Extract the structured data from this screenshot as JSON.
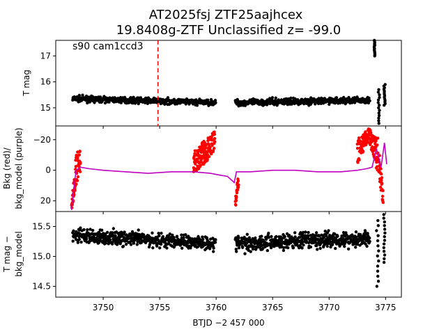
{
  "figure": {
    "title_line1": "AT2025fsj  ZTF25aajhcex",
    "title_line2": "19.8408g-ZTF Unclassified z= -99.0",
    "xlabel": "BTJD −2 457 000",
    "x_ticks": [
      "3750",
      "3755",
      "3760",
      "3765",
      "3770",
      "3775"
    ]
  },
  "colors": {
    "raw": "#000000",
    "bkg": "#ff0000",
    "bkg_model": "#bf00bf",
    "marker_line": "#ff0000"
  },
  "chart_data": [
    {
      "panel": "top",
      "type": "scatter",
      "ylabel": "T mag",
      "annotation": "s90 cam1ccd3",
      "xlim": [
        3745.8,
        3776.4
      ],
      "ylim": [
        17.6,
        14.3
      ],
      "inverted_y": true,
      "y_ticks": [
        "15",
        "16",
        "17"
      ],
      "vline_x": 3754.85,
      "series": [
        {
          "segments": [
            {
              "x_start": 3747.3,
              "x_end": 3759.95,
              "y_start": 15.35,
              "y_end": 15.2,
              "scatter": 0.07
            },
            {
              "x_start": 3761.7,
              "x_end": 3773.6,
              "y_start": 15.2,
              "y_end": 15.3,
              "scatter": 0.08
            }
          ]
        }
      ],
      "features": [
        {
          "x": 3774.0,
          "y_min": 17.0,
          "y_max": 17.6
        },
        {
          "x": 3774.4,
          "y_min": 14.4,
          "y_max": 15.7
        },
        {
          "x": 3774.9,
          "y_min": 15.1,
          "y_max": 15.9
        }
      ]
    },
    {
      "panel": "middle",
      "type": "scatter+line",
      "ylabel_line1": "Bkg (red)/",
      "ylabel_line2": "bkg_model (purple)",
      "xlim": [
        3745.8,
        3776.4
      ],
      "ylim": [
        -29,
        27
      ],
      "y_ticks": [
        "20",
        "0",
        "−20"
      ],
      "bkg_envelope": [
        {
          "x": 3747.2,
          "center": 24,
          "spread": 2
        },
        {
          "x": 3747.6,
          "center": 0,
          "spread": 10
        },
        {
          "x": 3748.0,
          "center": -8,
          "spread": 9
        },
        {
          "x": 3750.0,
          "center": -3,
          "spread": 7
        },
        {
          "x": 3753.0,
          "center": -1,
          "spread": 7
        },
        {
          "x": 3756.0,
          "center": -1,
          "spread": 7
        },
        {
          "x": 3758.0,
          "center": -5,
          "spread": 7
        },
        {
          "x": 3759.0,
          "center": -12,
          "spread": 8
        },
        {
          "x": 3759.9,
          "center": -20,
          "spread": 6
        },
        {
          "x": 3761.7,
          "center": 22,
          "spread": 3
        },
        {
          "x": 3762.0,
          "center": 3,
          "spread": 7
        },
        {
          "x": 3764.0,
          "center": 2,
          "spread": 8
        },
        {
          "x": 3768.0,
          "center": 2,
          "spread": 8
        },
        {
          "x": 3771.0,
          "center": 0,
          "spread": 8
        },
        {
          "x": 3772.5,
          "center": -12,
          "spread": 8
        },
        {
          "x": 3773.5,
          "center": -24,
          "spread": 4
        },
        {
          "x": 3774.3,
          "center": -10,
          "spread": 12
        },
        {
          "x": 3774.8,
          "center": 18,
          "spread": 5
        }
      ],
      "bkg_model_line": [
        {
          "x": 3747.2,
          "y": 26
        },
        {
          "x": 3747.4,
          "y": 12
        },
        {
          "x": 3747.6,
          "y": 0
        },
        {
          "x": 3748.0,
          "y": -2
        },
        {
          "x": 3748.8,
          "y": -1
        },
        {
          "x": 3750.0,
          "y": 0
        },
        {
          "x": 3752.0,
          "y": 1
        },
        {
          "x": 3754.0,
          "y": 2
        },
        {
          "x": 3756.0,
          "y": 1
        },
        {
          "x": 3758.0,
          "y": 1
        },
        {
          "x": 3759.5,
          "y": 2
        },
        {
          "x": 3760.2,
          "y": 3
        },
        {
          "x": 3761.0,
          "y": 4
        },
        {
          "x": 3761.6,
          "y": 8
        },
        {
          "x": 3761.8,
          "y": 1
        },
        {
          "x": 3763.0,
          "y": 1
        },
        {
          "x": 3765.0,
          "y": 0
        },
        {
          "x": 3767.0,
          "y": 0
        },
        {
          "x": 3769.0,
          "y": 1
        },
        {
          "x": 3771.0,
          "y": 1
        },
        {
          "x": 3772.5,
          "y": 0
        },
        {
          "x": 3773.3,
          "y": -1
        },
        {
          "x": 3773.8,
          "y": -2
        },
        {
          "x": 3774.2,
          "y": -14
        },
        {
          "x": 3774.6,
          "y": -2
        },
        {
          "x": 3774.9,
          "y": -18
        },
        {
          "x": 3775.1,
          "y": -4
        }
      ]
    },
    {
      "panel": "bottom",
      "type": "scatter",
      "ylabel_line1": "T mag −",
      "ylabel_line2": "bkg_model",
      "xlim": [
        3745.8,
        3776.4
      ],
      "ylim": [
        15.75,
        14.32
      ],
      "inverted_y": true,
      "y_ticks": [
        "14.5",
        "15.0",
        "15.5"
      ],
      "series": [
        {
          "segments": [
            {
              "x_start": 3747.3,
              "x_end": 3759.95,
              "y_start": 15.35,
              "y_end": 15.22,
              "scatter": 0.08
            },
            {
              "x_start": 3761.7,
              "x_end": 3773.6,
              "y_start": 15.22,
              "y_end": 15.3,
              "scatter": 0.09
            }
          ]
        }
      ],
      "features": [
        {
          "x": 3774.3,
          "y_min": 14.5,
          "y_max": 15.6
        },
        {
          "x": 3774.9,
          "y_min": 14.9,
          "y_max": 15.7
        }
      ]
    }
  ]
}
